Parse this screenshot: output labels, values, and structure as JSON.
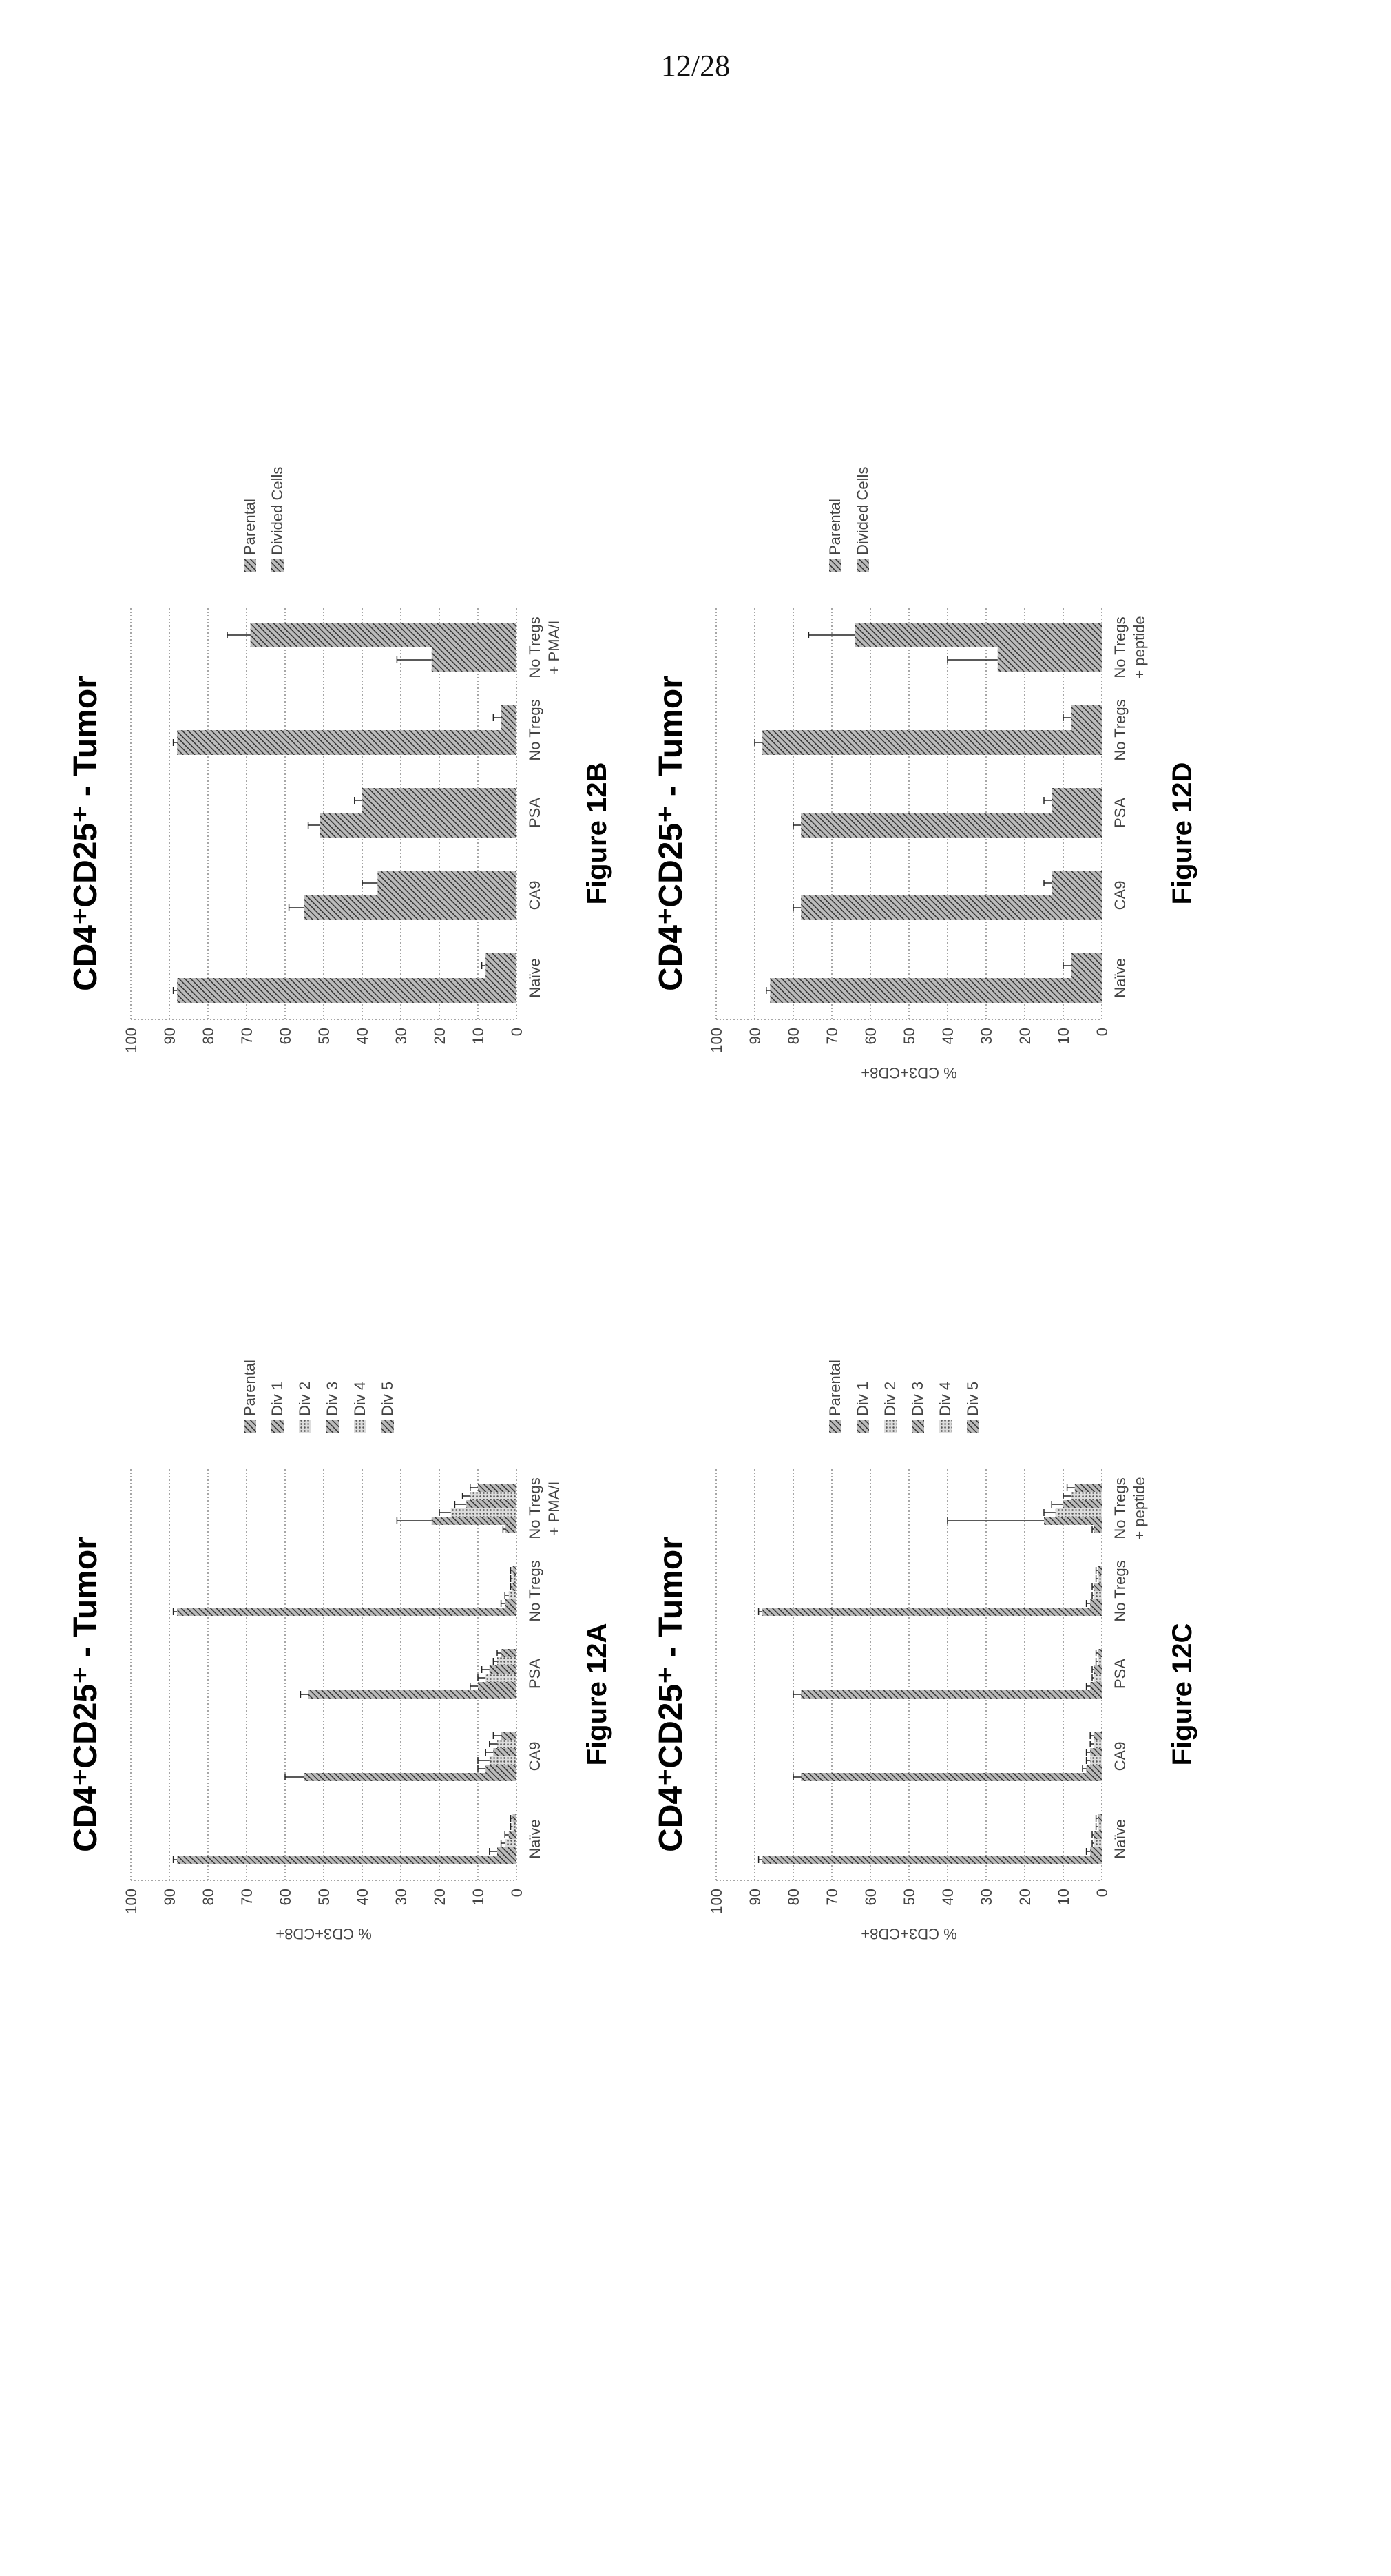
{
  "page": {
    "number": "12/28"
  },
  "chart_data": [
    {
      "id": "12A",
      "type": "bar",
      "title": "CD4⁺CD25⁺ - Tumor",
      "caption": "Figure 12A",
      "xlabel": "",
      "ylabel": "% CD3+CD8+",
      "ylim": [
        0,
        100
      ],
      "yticks": [
        0,
        10,
        20,
        30,
        40,
        50,
        60,
        70,
        80,
        90,
        100
      ],
      "grid": true,
      "legend_position": "right",
      "categories": [
        "Naïve",
        "CA9",
        "PSA",
        "No Tregs",
        "No Tregs + PMA/I"
      ],
      "series": [
        {
          "name": "Parental",
          "values": [
            88,
            55,
            54,
            88,
            3
          ],
          "errors": [
            1,
            5,
            2,
            1,
            0.5
          ]
        },
        {
          "name": "Div 1",
          "values": [
            5,
            8,
            10,
            3,
            22
          ],
          "errors": [
            2,
            2,
            2,
            1,
            9
          ]
        },
        {
          "name": "Div 2",
          "values": [
            3,
            7,
            8,
            2,
            17
          ],
          "errors": [
            1,
            3,
            2,
            1,
            3
          ]
        },
        {
          "name": "Div 3",
          "values": [
            2,
            6,
            7,
            1,
            13
          ],
          "errors": [
            1,
            2,
            2,
            0.5,
            3
          ]
        },
        {
          "name": "Div 4",
          "values": [
            1,
            5,
            5,
            1,
            12
          ],
          "errors": [
            0.5,
            2,
            1,
            0.5,
            2
          ]
        },
        {
          "name": "Div 5",
          "values": [
            1,
            4,
            4,
            1,
            10
          ],
          "errors": [
            0.5,
            2,
            1,
            0.5,
            2
          ]
        }
      ]
    },
    {
      "id": "12B",
      "type": "bar",
      "title": "CD4⁺CD25⁺ - Tumor",
      "caption": "Figure 12B",
      "xlabel": "",
      "ylabel": "",
      "ylim": [
        0,
        100
      ],
      "yticks": [
        0,
        10,
        20,
        30,
        40,
        50,
        60,
        70,
        80,
        90,
        100
      ],
      "grid": true,
      "legend_position": "right",
      "categories": [
        "Naïve",
        "CA9",
        "PSA",
        "No Tregs",
        "No Tregs + PMA/I"
      ],
      "series": [
        {
          "name": "Parental",
          "values": [
            88,
            55,
            51,
            88,
            22
          ],
          "errors": [
            1,
            4,
            3,
            1,
            9
          ]
        },
        {
          "name": "Divided Cells",
          "values": [
            8,
            36,
            40,
            4,
            69
          ],
          "errors": [
            1,
            4,
            2,
            2,
            6
          ]
        }
      ]
    },
    {
      "id": "12C",
      "type": "bar",
      "title": "CD4⁺CD25⁺ - Tumor",
      "caption": "Figure 12C",
      "xlabel": "",
      "ylabel": "% CD3+CD8+",
      "ylim": [
        0,
        100
      ],
      "yticks": [
        0,
        10,
        20,
        30,
        40,
        50,
        60,
        70,
        80,
        90,
        100
      ],
      "grid": true,
      "legend_position": "right",
      "categories": [
        "Naïve",
        "CA9",
        "PSA",
        "No Tregs",
        "No Tregs + peptide"
      ],
      "series": [
        {
          "name": "Parental",
          "values": [
            88,
            78,
            78,
            88,
            2
          ],
          "errors": [
            1,
            2,
            2,
            1,
            0.5
          ]
        },
        {
          "name": "Div 1",
          "values": [
            3,
            4,
            3,
            3,
            15
          ],
          "errors": [
            1,
            1,
            1,
            1,
            25
          ]
        },
        {
          "name": "Div 2",
          "values": [
            2,
            3,
            2,
            2,
            12
          ],
          "errors": [
            0.5,
            1,
            0.5,
            0.5,
            3
          ]
        },
        {
          "name": "Div 3",
          "values": [
            2,
            3,
            2,
            2,
            10
          ],
          "errors": [
            0.5,
            1,
            0.5,
            0.5,
            3
          ]
        },
        {
          "name": "Div 4",
          "values": [
            1,
            2,
            1,
            1,
            8
          ],
          "errors": [
            0.5,
            1,
            0.5,
            0.5,
            2
          ]
        },
        {
          "name": "Div 5",
          "values": [
            1,
            2,
            1,
            1,
            7
          ],
          "errors": [
            0.5,
            1,
            0.5,
            0.5,
            2
          ]
        }
      ]
    },
    {
      "id": "12D",
      "type": "bar",
      "title": "CD4⁺CD25⁺ - Tumor",
      "caption": "Figure 12D",
      "xlabel": "",
      "ylabel": "% CD3+CD8+",
      "ylim": [
        0,
        100
      ],
      "yticks": [
        0,
        10,
        20,
        30,
        40,
        50,
        60,
        70,
        80,
        90,
        100
      ],
      "grid": true,
      "legend_position": "right",
      "categories": [
        "Naïve",
        "CA9",
        "PSA",
        "No Tregs",
        "No Tregs + peptide"
      ],
      "series": [
        {
          "name": "Parental",
          "values": [
            86,
            78,
            78,
            88,
            27
          ],
          "errors": [
            1,
            2,
            2,
            2,
            13
          ]
        },
        {
          "name": "Divided Cells",
          "values": [
            8,
            13,
            13,
            8,
            64
          ],
          "errors": [
            2,
            2,
            2,
            2,
            12
          ]
        }
      ]
    }
  ]
}
